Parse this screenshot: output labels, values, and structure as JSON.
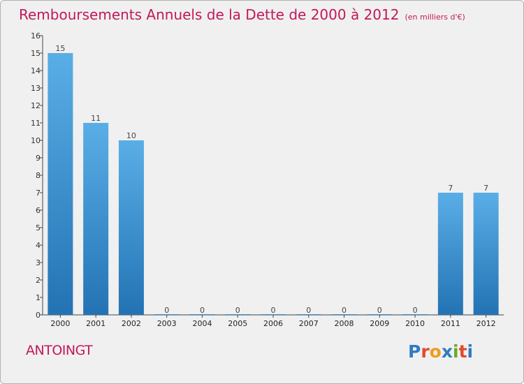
{
  "title": "Remboursements Annuels de la Dette de 2000 à 2012",
  "unit": "(en milliers d'€)",
  "region": "ANTOINGT",
  "logo": {
    "letters": [
      "P",
      "r",
      "o",
      "x",
      "i",
      "t",
      "i"
    ],
    "colors": [
      "#2e7bc4",
      "#e24a2c",
      "#f29b1d",
      "#2e7bc4",
      "#6aaa2a",
      "#e24a2c",
      "#2e7bc4"
    ]
  },
  "chart_data": {
    "type": "bar",
    "categories": [
      "2000",
      "2001",
      "2002",
      "2003",
      "2004",
      "2005",
      "2006",
      "2007",
      "2008",
      "2009",
      "2010",
      "2011",
      "2012"
    ],
    "values": [
      15,
      11,
      10,
      0,
      0,
      0,
      0,
      0,
      0,
      0,
      0,
      7,
      7
    ],
    "title": "Remboursements Annuels de la Dette de 2000 à 2012",
    "ylim": [
      0,
      16
    ],
    "yticks": [
      0,
      1,
      2,
      3,
      4,
      5,
      6,
      7,
      8,
      9,
      10,
      11,
      12,
      13,
      14,
      15,
      16
    ],
    "grid": false,
    "colors": {
      "bar_top": "#5aaee6",
      "bar_bottom": "#2373b4"
    }
  }
}
